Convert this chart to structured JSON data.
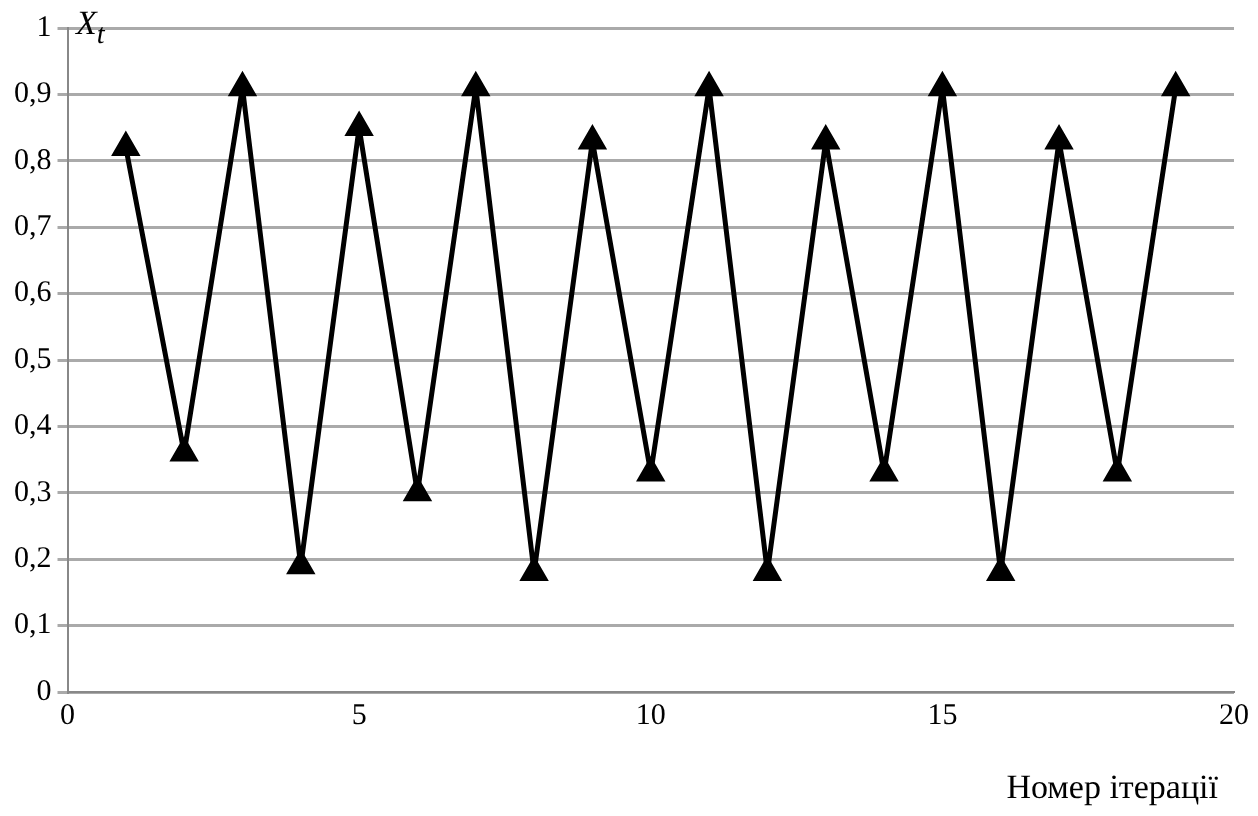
{
  "chart_data": {
    "type": "line",
    "xlabel": "Номер ітерації",
    "ylabel": "X$_{t}$",
    "x": [
      1,
      2,
      3,
      4,
      5,
      6,
      7,
      8,
      9,
      10,
      11,
      12,
      13,
      14,
      15,
      16,
      17,
      18,
      19
    ],
    "series": [
      {
        "color": "#000000",
        "values": [
          0.82,
          0.36,
          0.91,
          0.19,
          0.85,
          0.3,
          0.91,
          0.18,
          0.83,
          0.33,
          0.91,
          0.18,
          0.83,
          0.33,
          0.91,
          0.18,
          0.83,
          0.33,
          0.91
        ]
      }
    ],
    "xlim": [
      0,
      20
    ],
    "xticks": [
      0,
      5,
      10,
      15,
      20
    ],
    "ylim": [
      0,
      1
    ],
    "yticks": [
      0,
      {
        "value": 0.1,
        "label": "0,1"
      },
      {
        "value": 0.2,
        "label": "0,2"
      },
      {
        "value": 0.3,
        "label": "0,3"
      },
      {
        "value": 0.4,
        "label": "0,4"
      },
      {
        "value": 0.5,
        "label": "0,5"
      },
      {
        "value": 0.6,
        "label": "0,6"
      },
      {
        "value": 0.7,
        "label": "0,7"
      },
      {
        "value": 0.8,
        "label": "0,8"
      },
      {
        "value": 0.9,
        "label": "0,9"
      },
      1
    ],
    "grid": "y",
    "legend": false,
    "marker": "triangle",
    "line_style": "solid"
  }
}
